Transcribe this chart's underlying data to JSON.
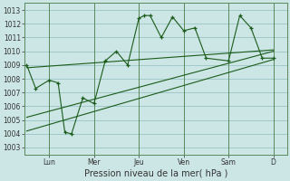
{
  "xlabel": "Pression niveau de la mer( hPa )",
  "bg_color": "#cce5e5",
  "line_color": "#1a5c1a",
  "grid_color": "#99c4c4",
  "ylim": [
    1002.5,
    1013.5
  ],
  "yticks": [
    1003,
    1004,
    1005,
    1006,
    1007,
    1008,
    1009,
    1010,
    1011,
    1012,
    1013
  ],
  "day_labels": [
    "Lun",
    "Mer",
    "Jeu",
    "Ven",
    "Sam",
    "D"
  ],
  "day_positions": [
    1.0,
    3.0,
    5.0,
    7.0,
    9.0,
    11.0
  ],
  "series1_x": [
    0,
    0.4,
    1.0,
    1.4,
    1.7,
    2.0,
    2.5,
    3.0,
    3.5,
    4.0,
    4.5,
    5.0,
    5.25,
    5.5,
    6.0,
    6.5,
    7.0,
    7.5,
    8.0,
    9.0,
    9.5,
    10.0,
    10.5,
    11.0
  ],
  "series1_y": [
    1009.0,
    1007.3,
    1007.9,
    1007.7,
    1004.1,
    1004.0,
    1006.6,
    1006.2,
    1009.3,
    1010.0,
    1009.0,
    1012.4,
    1012.6,
    1012.6,
    1011.0,
    1012.5,
    1011.5,
    1011.7,
    1009.5,
    1009.3,
    1012.6,
    1011.7,
    1009.5,
    1009.5
  ],
  "trend1_x": [
    0,
    11.0
  ],
  "trend1_y": [
    1008.8,
    1010.1
  ],
  "trend2_x": [
    0,
    11.0
  ],
  "trend2_y": [
    1005.2,
    1010.0
  ],
  "trend3_x": [
    0,
    11.0
  ],
  "trend3_y": [
    1004.2,
    1009.4
  ],
  "xlim": [
    -0.1,
    11.6
  ],
  "tick_fontsize": 5.5,
  "xlabel_fontsize": 7,
  "linewidth": 0.8,
  "marker_size": 3.5,
  "spine_color": "#5a8a5a"
}
